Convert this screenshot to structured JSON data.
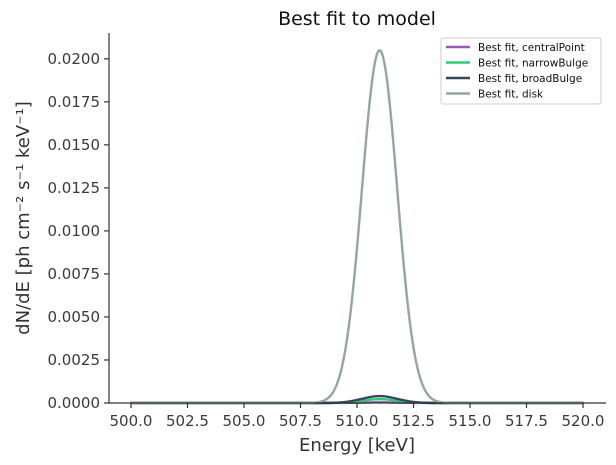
{
  "chart_data": {
    "type": "line",
    "title": "Best fit to model",
    "xlabel": "Energy [keV]",
    "ylabel": "dN/dE [ph cm⁻² s⁻¹ keV⁻¹]",
    "xlim": [
      500.0,
      520.0
    ],
    "ylim": [
      0.0,
      0.0215
    ],
    "x_ticks": [
      "500.0",
      "502.5",
      "505.0",
      "507.5",
      "510.0",
      "512.5",
      "515.0",
      "517.5",
      "520.0"
    ],
    "y_ticks": [
      "0.0000",
      "0.0025",
      "0.0050",
      "0.0075",
      "0.0100",
      "0.0125",
      "0.0150",
      "0.0175",
      "0.0200"
    ],
    "legend_position": "top-right",
    "grid": false,
    "series": [
      {
        "name": "Best fit, centralPoint",
        "color": "#9b59b6",
        "model": {
          "center": 511.0,
          "sigma": 0.78,
          "amplitude": 4e-05
        }
      },
      {
        "name": "Best fit, narrowBulge",
        "color": "#2ecc71",
        "model": {
          "center": 511.0,
          "sigma": 0.78,
          "amplitude": 0.00022
        }
      },
      {
        "name": "Best fit, broadBulge",
        "color": "#34495e",
        "model": {
          "center": 511.0,
          "sigma": 0.78,
          "amplitude": 0.0004
        }
      },
      {
        "name": "Best fit, disk",
        "color": "#95a5a6",
        "model": {
          "center": 511.0,
          "sigma": 0.78,
          "amplitude": 0.0205
        }
      }
    ]
  }
}
